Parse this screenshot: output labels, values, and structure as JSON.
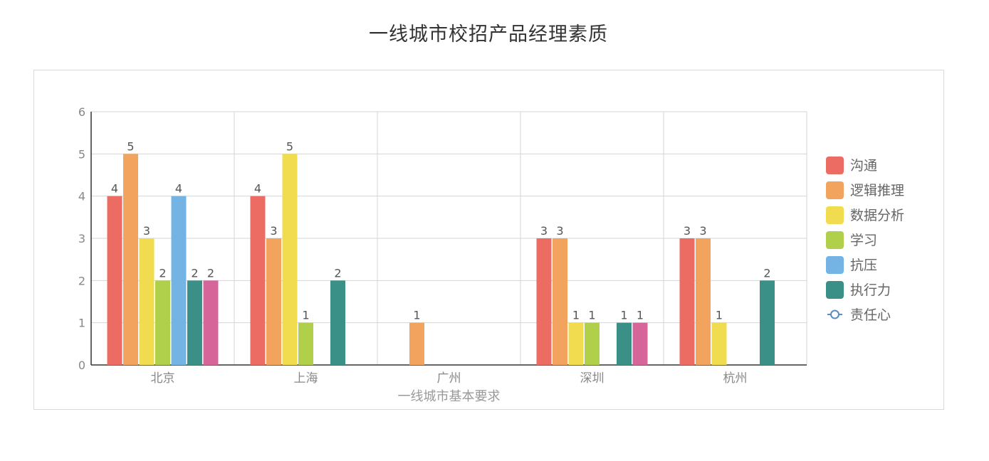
{
  "title": "一线城市校招产品经理素质",
  "chart_data": {
    "type": "bar",
    "title": "一线城市校招产品经理素质",
    "xlabel": "一线城市基本要求",
    "ylabel": "",
    "ylim": [
      0,
      6
    ],
    "yticks": [
      0,
      1,
      2,
      3,
      4,
      5,
      6
    ],
    "categories": [
      "北京",
      "上海",
      "广州",
      "深圳",
      "杭州"
    ],
    "grid": true,
    "legend_position": "right",
    "series": [
      {
        "name": "沟通",
        "color": "#ec6b62",
        "values": [
          4,
          4,
          null,
          3,
          3
        ]
      },
      {
        "name": "逻辑推理",
        "color": "#f2a35e",
        "values": [
          5,
          3,
          1,
          3,
          3
        ]
      },
      {
        "name": "数据分析",
        "color": "#f0dc4e",
        "values": [
          3,
          5,
          null,
          1,
          1
        ]
      },
      {
        "name": "学习",
        "color": "#b0cf4b",
        "values": [
          2,
          1,
          null,
          1,
          null
        ]
      },
      {
        "name": "抗压",
        "color": "#74b4e4",
        "values": [
          4,
          null,
          null,
          null,
          null
        ]
      },
      {
        "name": "执行力",
        "color": "#3a8f86",
        "values": [
          2,
          2,
          null,
          1,
          2
        ]
      },
      {
        "name": "责任心",
        "color": "#d6659a",
        "legend_color": "#5b8bc4",
        "legend_marker": "line-circle",
        "values": [
          2,
          null,
          null,
          1,
          null
        ]
      }
    ]
  }
}
